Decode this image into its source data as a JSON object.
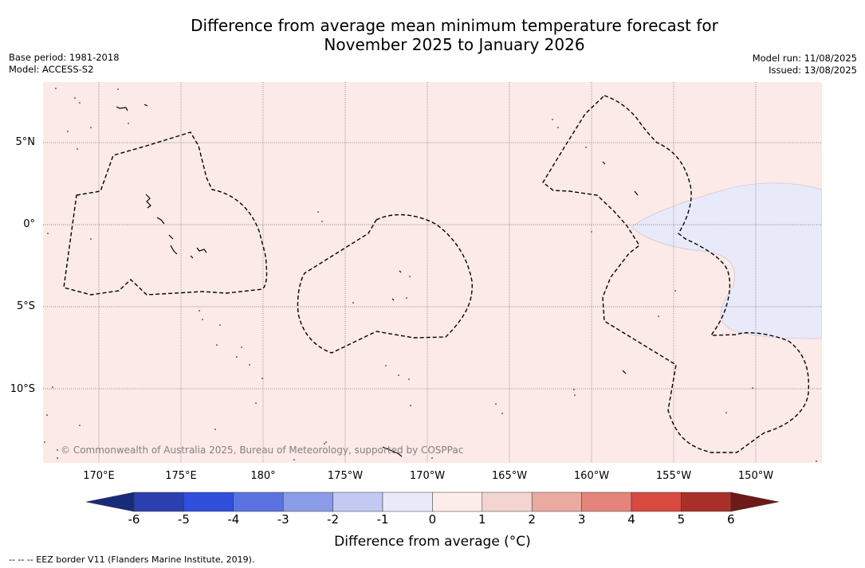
{
  "title_line1": "Difference from average mean minimum temperature forecast for",
  "title_line2": "November 2025 to January 2026",
  "meta": {
    "base_period": "Base period: 1981-2018",
    "model": "Model: ACCESS-S2",
    "model_run": "Model run: 11/08/2025",
    "issued": "Issued: 13/08/2025"
  },
  "map": {
    "background_color": "#fbeae7",
    "anomaly_patch_color": "#e8eafa",
    "lat_labels": [
      "5°N",
      "0°",
      "5°S",
      "10°S"
    ],
    "lon_labels": [
      "170°E",
      "175°E",
      "180°",
      "175°W",
      "170°W",
      "165°W",
      "160°W",
      "155°W",
      "150°W"
    ],
    "copyright": "© Commonwealth of Australia 2025, Bureau of Meteorology, supported by COSPPac"
  },
  "colorbar": {
    "ticks": [
      "-6",
      "-5",
      "-4",
      "-3",
      "-2",
      "-1",
      "0",
      "1",
      "2",
      "3",
      "4",
      "5",
      "6"
    ],
    "colors": [
      "#1a2a7a",
      "#2b3fae",
      "#2f4fdc",
      "#5a73e0",
      "#8a9ce8",
      "#c2c9f2",
      "#e8eafa",
      "#fcecea",
      "#f2d5d0",
      "#eaaaa2",
      "#e4847a",
      "#d84a3f",
      "#a9302a",
      "#6e1a18"
    ],
    "label": "Difference from average (°C)"
  },
  "legend_note": "--  --  -- EEZ border V11 (Flanders Marine Institute, 2019)."
}
